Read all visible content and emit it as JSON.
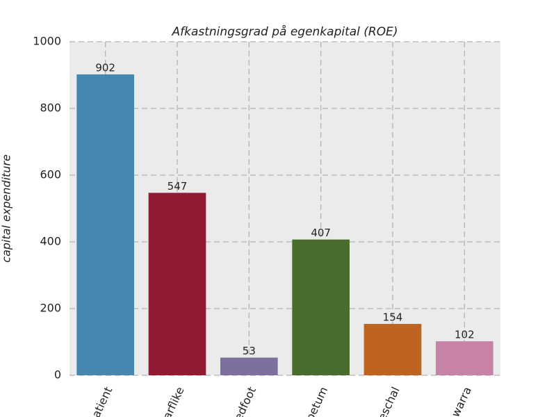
{
  "chart_data": {
    "type": "bar",
    "title": "Afkastningsgrad på egenkapital (ROE)",
    "y_label": "capital expenditure",
    "categories": [
      "atient",
      "arflike",
      "edfoot",
      "petum",
      "eschal",
      "warra"
    ],
    "values": [
      902,
      547,
      53,
      407,
      154,
      102
    ],
    "colors": [
      "#4587af",
      "#931a33",
      "#7d6f9e",
      "#4a6d2e",
      "#bd6420",
      "#c683a7"
    ],
    "ylim": [
      0,
      1000
    ],
    "yticks": [
      0,
      200,
      400,
      600,
      800,
      1000
    ],
    "grid": true
  }
}
